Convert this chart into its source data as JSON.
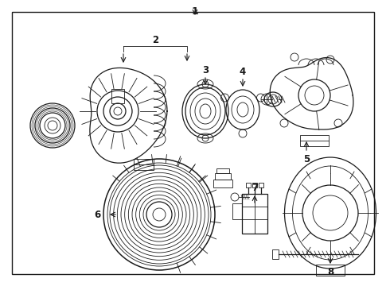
{
  "bg_color": "#ffffff",
  "line_color": "#1a1a1a",
  "border_color": "#1a1a1a",
  "label_color": "#000000",
  "fig_width": 4.9,
  "fig_height": 3.6,
  "dpi": 100
}
